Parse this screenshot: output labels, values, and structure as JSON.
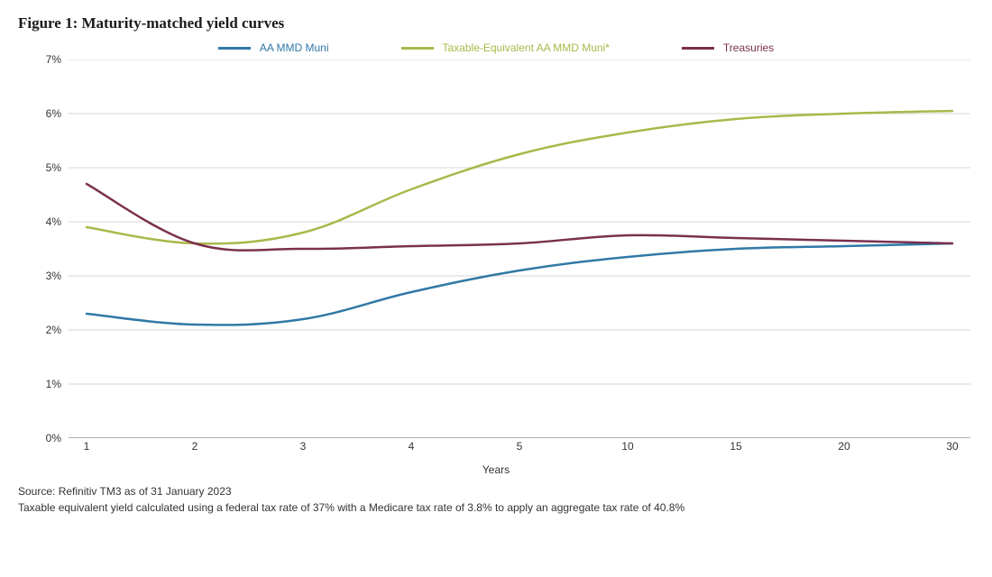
{
  "chart": {
    "type": "line",
    "title": "Figure 1: Maturity-matched yield curves",
    "title_fontsize": 17,
    "title_fontweight": "bold",
    "background_color": "#ffffff",
    "grid_color": "#d6d6d6",
    "axis_color": "#666666",
    "text_color": "#333333",
    "label_fontsize": 12,
    "line_width": 2.5,
    "x_axis": {
      "title": "Years",
      "categories": [
        "1",
        "2",
        "3",
        "4",
        "5",
        "10",
        "15",
        "20",
        "30"
      ]
    },
    "y_axis": {
      "ylim": [
        0,
        7
      ],
      "tick_step": 1,
      "ticks": [
        "0%",
        "1%",
        "2%",
        "3%",
        "4%",
        "5%",
        "6%",
        "7%"
      ]
    },
    "legend": {
      "position": "top-center",
      "fontsize": 12,
      "items": [
        {
          "label": "AA MMD Muni",
          "color": "#3079a6"
        },
        {
          "label": "Taxable-Equivalent AA MMD Muni*",
          "color": "#a9b84a"
        },
        {
          "label": "Treasuries",
          "color": "#7a304e"
        }
      ]
    },
    "series": [
      {
        "name": "AA MMD Muni",
        "color": "#3079a6",
        "y": [
          2.3,
          2.1,
          2.2,
          2.7,
          3.1,
          3.35,
          3.5,
          3.55,
          3.6
        ]
      },
      {
        "name": "Taxable-Equivalent AA MMD Muni*",
        "color": "#a9b84a",
        "y": [
          3.9,
          3.6,
          3.8,
          4.6,
          5.25,
          5.65,
          5.9,
          6.0,
          6.05
        ]
      },
      {
        "name": "Treasuries",
        "color": "#7a304e",
        "y": [
          4.7,
          3.6,
          3.5,
          3.55,
          3.6,
          3.75,
          3.7,
          3.65,
          3.6
        ]
      }
    ],
    "footnotes": [
      "Source: Refinitiv TM3 as of 31 January 2023",
      "Taxable equivalent yield calculated using a federal tax rate of 37% with a Medicare tax rate of 3.8% to apply an aggregate tax rate of 40.8%"
    ]
  }
}
